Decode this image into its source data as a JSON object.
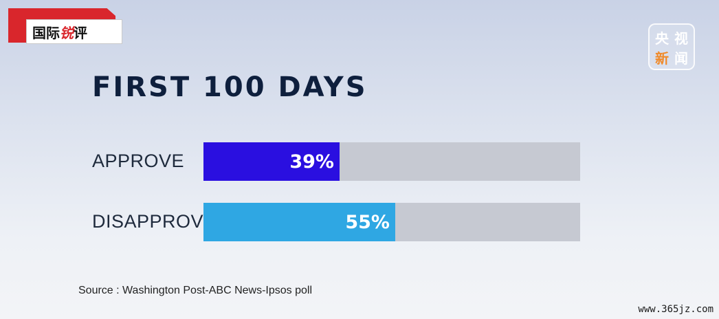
{
  "logo": {
    "text_black": "国际",
    "text_accent": "锐",
    "text_black2": "评"
  },
  "watermark": [
    "央",
    "视",
    "新",
    "闻"
  ],
  "chart_data": {
    "type": "bar",
    "title": "FIRST 100 DAYS",
    "categories": [
      "APPROVE",
      "DISAPPROVE"
    ],
    "values": [
      39,
      55
    ],
    "value_labels": [
      "39%",
      "55%"
    ],
    "xlim": [
      0,
      100
    ],
    "colors": [
      "#2a0fe0",
      "#2fa7e3"
    ]
  },
  "source": "Source : Washington Post-ABC News-Ipsos poll",
  "url": "www.365jz.com"
}
